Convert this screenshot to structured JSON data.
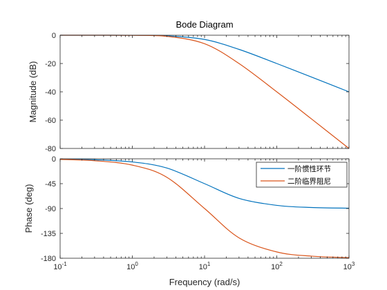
{
  "chart_data": [
    {
      "type": "line",
      "title": "Bode Diagram",
      "ylabel": "Magnitude (dB)",
      "xscale": "log",
      "xlim": [
        0.1,
        1000
      ],
      "ylim": [
        -80,
        0
      ],
      "yticks": [
        "0",
        "-20",
        "-40",
        "-60",
        "-80"
      ],
      "grid": false,
      "series": [
        {
          "name": "一阶惯性环节",
          "color": "#0072BD",
          "x": [
            0.1,
            0.3,
            1,
            3,
            10,
            30,
            100,
            300,
            1000
          ],
          "values": [
            0.0,
            0.0,
            -0.04,
            -0.4,
            -3.0,
            -10.0,
            -20.0,
            -29.5,
            -40.0
          ]
        },
        {
          "name": "二阶临界阻尼",
          "color": "#D95319",
          "x": [
            0.1,
            0.3,
            1,
            3,
            10,
            30,
            100,
            300,
            1000
          ],
          "values": [
            0.0,
            0.0,
            -0.09,
            -0.8,
            -6.0,
            -20.0,
            -40.0,
            -59.0,
            -80.0
          ]
        }
      ]
    },
    {
      "type": "line",
      "xlabel": "Frequency  (rad/s)",
      "ylabel": "Phase (deg)",
      "xscale": "log",
      "xlim": [
        0.1,
        1000
      ],
      "ylim": [
        -180,
        0
      ],
      "xticks": [
        {
          "base": "10",
          "exp": "-1"
        },
        {
          "base": "10",
          "exp": "0"
        },
        {
          "base": "10",
          "exp": "1"
        },
        {
          "base": "10",
          "exp": "2"
        },
        {
          "base": "10",
          "exp": "3"
        }
      ],
      "yticks": [
        "0",
        "-45",
        "-90",
        "-135",
        "-180"
      ],
      "grid": false,
      "legend": "top-right",
      "series": [
        {
          "name": "一阶惯性环节",
          "color": "#0072BD",
          "x": [
            0.1,
            0.3,
            1,
            3,
            10,
            30,
            100,
            300,
            1000
          ],
          "values": [
            -0.6,
            -1.7,
            -5.7,
            -16.7,
            -45.0,
            -71.6,
            -84.3,
            -88.1,
            -89.4
          ]
        },
        {
          "name": "二阶临界阻尼",
          "color": "#D95319",
          "x": [
            0.1,
            0.3,
            1,
            3,
            10,
            30,
            100,
            300,
            1000
          ],
          "values": [
            -1.1,
            -3.4,
            -11.4,
            -33.4,
            -90.0,
            -143.1,
            -168.6,
            -176.2,
            -178.9
          ]
        }
      ]
    }
  ]
}
